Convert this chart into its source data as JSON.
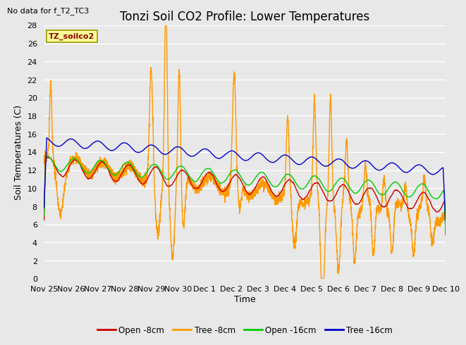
{
  "title": "Tonzi Soil CO2 Profile: Lower Temperatures",
  "subtitle": "No data for f_T2_TC3",
  "ylabel": "Soil Temperatures (C)",
  "xlabel": "Time",
  "box_label": "TZ_soilco2",
  "ylim": [
    0,
    28
  ],
  "yticks": [
    0,
    2,
    4,
    6,
    8,
    10,
    12,
    14,
    16,
    18,
    20,
    22,
    24,
    26,
    28
  ],
  "x_labels": [
    "Nov 25",
    "Nov 26",
    "Nov 27",
    "Nov 28",
    "Nov 29",
    "Nov 30",
    "Dec 1",
    "Dec 2",
    "Dec 3",
    "Dec 4",
    "Dec 5",
    "Dec 6",
    "Dec 7",
    "Dec 8",
    "Dec 9",
    "Dec 10"
  ],
  "legend": [
    "Open -8cm",
    "Tree -8cm",
    "Open -16cm",
    "Tree -16cm"
  ],
  "line_colors": [
    "#cc0000",
    "#ff9900",
    "#00cc00",
    "#0000cc"
  ],
  "bg_color": "#e8e8e8",
  "title_fontsize": 12,
  "label_fontsize": 9,
  "tick_fontsize": 8
}
